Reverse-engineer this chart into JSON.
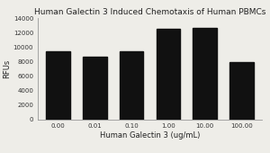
{
  "title": "Human Galectin 3 Induced Chemotaxis of Human PBMCs",
  "xlabel": "Human Galectin 3 (ug/mL)",
  "ylabel": "RFUs",
  "categories": [
    "0.00",
    "0.01",
    "0.10",
    "1.00",
    "10.00",
    "100.00"
  ],
  "values": [
    9400,
    8700,
    9400,
    12500,
    12700,
    7900
  ],
  "bar_color": "#111111",
  "ylim": [
    0,
    14000
  ],
  "yticks": [
    0,
    2000,
    4000,
    6000,
    8000,
    10000,
    12000,
    14000
  ],
  "background_color": "#eeede8",
  "title_fontsize": 6.5,
  "axis_label_fontsize": 6.0,
  "tick_fontsize": 5.0,
  "bar_width": 0.65
}
